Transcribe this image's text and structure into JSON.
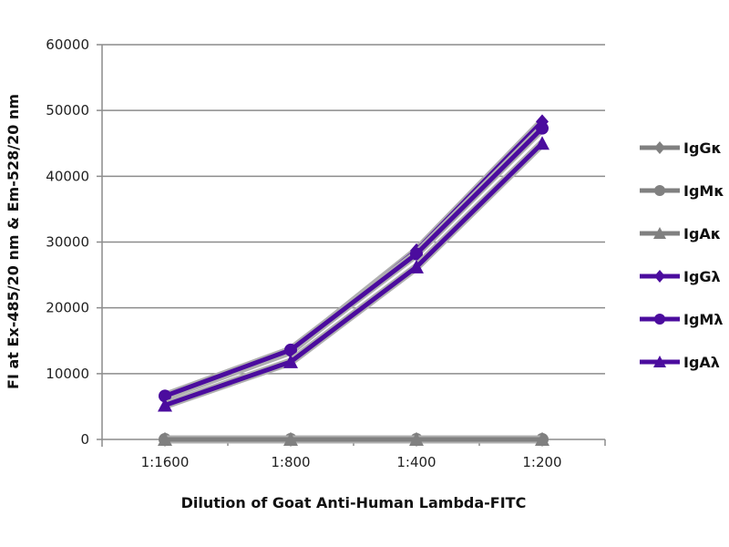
{
  "chart_data": {
    "type": "line",
    "title": "",
    "xlabel": "Dilution of Goat Anti-Human Lambda-FITC",
    "ylabel": "FI at Ex-485/20 nm & Em-528/20 nm",
    "categories": [
      "1:1600",
      "1:800",
      "1:400",
      "1:200"
    ],
    "ylim": [
      0,
      60000
    ],
    "yticks": [
      0,
      10000,
      20000,
      30000,
      40000,
      50000,
      60000
    ],
    "grid": true,
    "legend_position": "right",
    "series": [
      {
        "name": "IgGκ",
        "marker": "diamond",
        "color": "#808080",
        "values": [
          0,
          0,
          0,
          0
        ]
      },
      {
        "name": "IgMκ",
        "marker": "circle",
        "color": "#808080",
        "values": [
          0,
          0,
          0,
          0
        ]
      },
      {
        "name": "IgAκ",
        "marker": "triangle",
        "color": "#808080",
        "values": [
          0,
          0,
          0,
          0
        ]
      },
      {
        "name": "IgGλ",
        "marker": "diamond",
        "color": "#4B0C9E",
        "values": [
          6500,
          13400,
          28700,
          48300
        ]
      },
      {
        "name": "IgMλ",
        "marker": "circle",
        "color": "#4B0C9E",
        "values": [
          6600,
          13600,
          28200,
          47300
        ]
      },
      {
        "name": "IgAλ",
        "marker": "triangle",
        "color": "#4B0C9E",
        "values": [
          5200,
          11800,
          26200,
          45000
        ]
      }
    ]
  }
}
